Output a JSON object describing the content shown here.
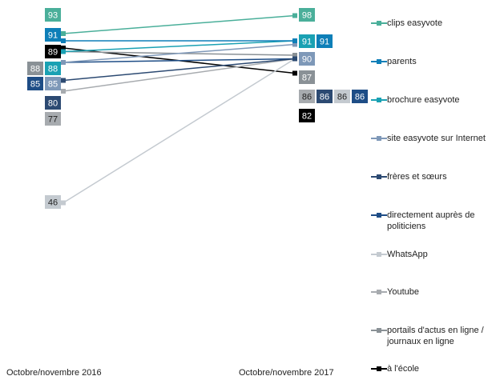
{
  "chart_data": {
    "type": "line",
    "x": [
      "Octobre/novembre 2016",
      "Octobre/novembre 2017"
    ],
    "series": [
      {
        "name": "clips easyvote",
        "color": "#4aaf9a",
        "text_color": "#ffffff",
        "values": [
          93,
          98
        ],
        "labels": [
          "93",
          "98"
        ]
      },
      {
        "name": "parents",
        "color": "#0e7fb8",
        "text_color": "#ffffff",
        "values": [
          91,
          91
        ],
        "labels": [
          "91",
          "91"
        ]
      },
      {
        "name": "brochure easyvote",
        "color": "#1aa1b3",
        "text_color": "#ffffff",
        "values": [
          88,
          91
        ],
        "labels": [
          "88",
          "91"
        ]
      },
      {
        "name": "site easyvote sur Internet",
        "color": "#7e98b8",
        "text_color": "#ffffff",
        "values": [
          85,
          90
        ],
        "labels": [
          "85",
          "90"
        ]
      },
      {
        "name": "frères et sœurs",
        "color": "#2c4a72",
        "text_color": "#ffffff",
        "values": [
          80,
          86
        ],
        "labels": [
          "80",
          "86"
        ]
      },
      {
        "name": "directement auprès de politiciens",
        "color": "#1e4d86",
        "text_color": "#ffffff",
        "values": [
          85,
          86
        ],
        "labels": [
          "85",
          "86"
        ]
      },
      {
        "name": "WhatsApp",
        "color": "#c4cad0",
        "text_color": "#222222",
        "values": [
          46,
          86
        ],
        "labels": [
          "46",
          "86"
        ]
      },
      {
        "name": "Youtube",
        "color": "#a7abaf",
        "text_color": "#222222",
        "values": [
          77,
          86
        ],
        "labels": [
          "77",
          "86"
        ]
      },
      {
        "name": "portails d'actus en ligne / journaux en ligne",
        "color": "#8a9196",
        "text_color": "#ffffff",
        "values": [
          88,
          87
        ],
        "labels": [
          "88",
          "87"
        ]
      },
      {
        "name": "à l'école",
        "color": "#000000",
        "text_color": "#ffffff",
        "values": [
          89,
          82
        ],
        "labels": [
          "89",
          "82"
        ]
      }
    ]
  }
}
